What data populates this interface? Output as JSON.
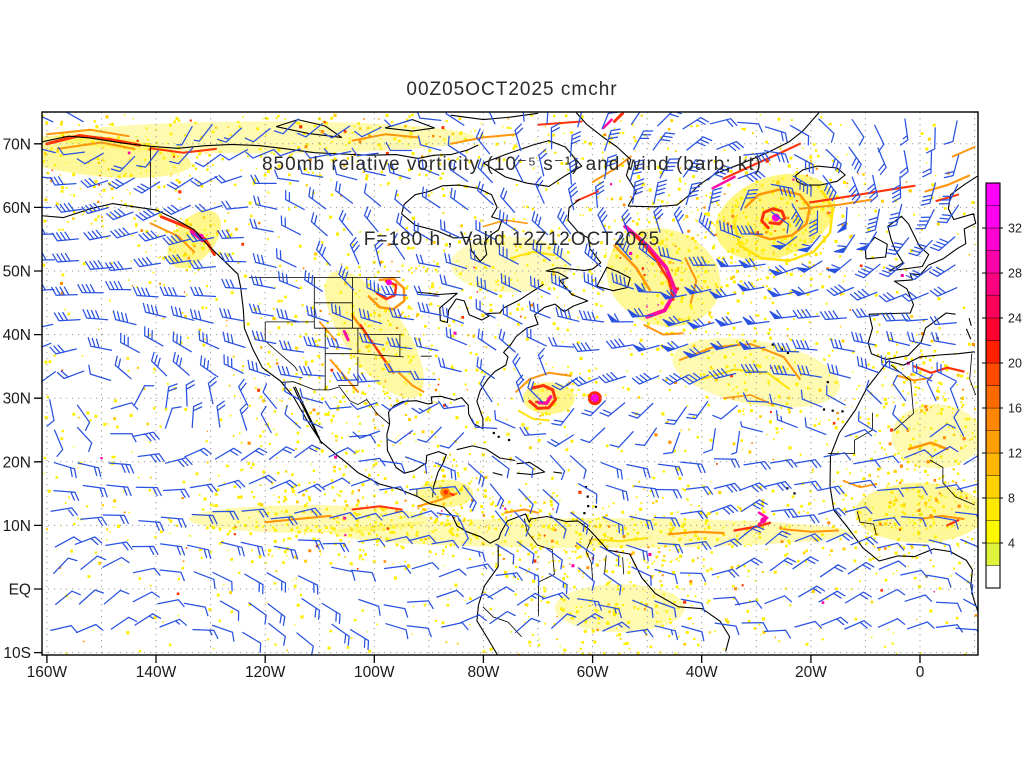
{
  "title": {
    "line1": "00Z05OCT2025 cmchr",
    "line2": "850mb relative vorticity (10⁻⁵ s⁻¹) and wind (barb; kt)",
    "line3": "F=180 h ; Valid 12Z12OCT2025"
  },
  "axes": {
    "lat_labels": [
      "70N",
      "60N",
      "50N",
      "40N",
      "30N",
      "20N",
      "10N",
      "EQ",
      "10S"
    ],
    "lat_values": [
      70,
      60,
      50,
      40,
      30,
      20,
      10,
      0,
      -10
    ],
    "lon_labels": [
      "160W",
      "140W",
      "120W",
      "100W",
      "80W",
      "60W",
      "40W",
      "20W",
      "0"
    ],
    "lon_values": [
      -160,
      -140,
      -120,
      -100,
      -80,
      -60,
      -40,
      -20,
      0
    ]
  },
  "colorbar": {
    "tick_labels": [
      "4",
      "8",
      "12",
      "16",
      "20",
      "24",
      "28",
      "32"
    ],
    "tick_values": [
      4,
      8,
      12,
      16,
      20,
      24,
      28,
      32
    ],
    "range_min": 0,
    "range_max": 36,
    "step": 2,
    "segment_colors_bottom_to_top": [
      "#ffffff",
      "#dff33c",
      "#fcf800",
      "#ffe900",
      "#ffd200",
      "#ffb600",
      "#ff9e00",
      "#ff8600",
      "#ff6a00",
      "#ff4a00",
      "#ff2000",
      "#fd0030",
      "#fb0058",
      "#fa0080",
      "#fa00a8",
      "#fb00d0",
      "#fd00ee",
      "#ff00ff"
    ]
  },
  "colors": {
    "barb": "#2a52e0",
    "coast": "#000000",
    "grid": "#9a9a9a",
    "axis_text": "#1a1a1a",
    "title_text": "#2b2b2b",
    "background": "#ffffff"
  },
  "chart_data": {
    "type": "map",
    "projection": "equirectangular lat/lon",
    "field": "850mb relative vorticity (10⁻⁵ s⁻¹), shaded from 2 to 36 by 2",
    "overlay": "wind barbs (kt), blue",
    "model_run": "00Z05OCT2025",
    "model": "cmchr",
    "forecast": "F=180 h",
    "valid": "12Z12OCT2025",
    "lon_range": [
      "160W",
      "10E approx"
    ],
    "lat_range": [
      "10S",
      "75N approx"
    ],
    "colorbar_ticks": [
      4,
      8,
      12,
      16,
      20,
      24,
      28,
      32
    ],
    "notable_features": [
      {
        "name": "intense cyclonic vorticity maximum (magenta core)",
        "approx_location": "27W 58N, south of Iceland"
      },
      {
        "name": "curved magenta vorticity filament",
        "approx_location": "44-53W 43-57N, south of Greenland"
      },
      {
        "name": "tropical-cyclone-like vortex with red/magenta hook",
        "approx_location": "68W 30N"
      },
      {
        "name": "magenta vorticity blob",
        "approx_location": "60W 30N"
      },
      {
        "name": "vortex over northern Great Plains",
        "approx_location": "97W 48N"
      },
      {
        "name": "red vorticity bands along Alaska arctic coast",
        "approx_location": "140-160W 70N"
      },
      {
        "name": "red band on British Columbia coast with magenta segment",
        "approx_location": "130-134W 53-57N"
      },
      {
        "name": "ITCZ vorticity band",
        "approx_location": "5-12N across East Pacific and Atlantic"
      },
      {
        "name": "orange vorticity over Atlas mountains and West Africa",
        "approx_location": "5W-10E 8-36N"
      }
    ]
  }
}
